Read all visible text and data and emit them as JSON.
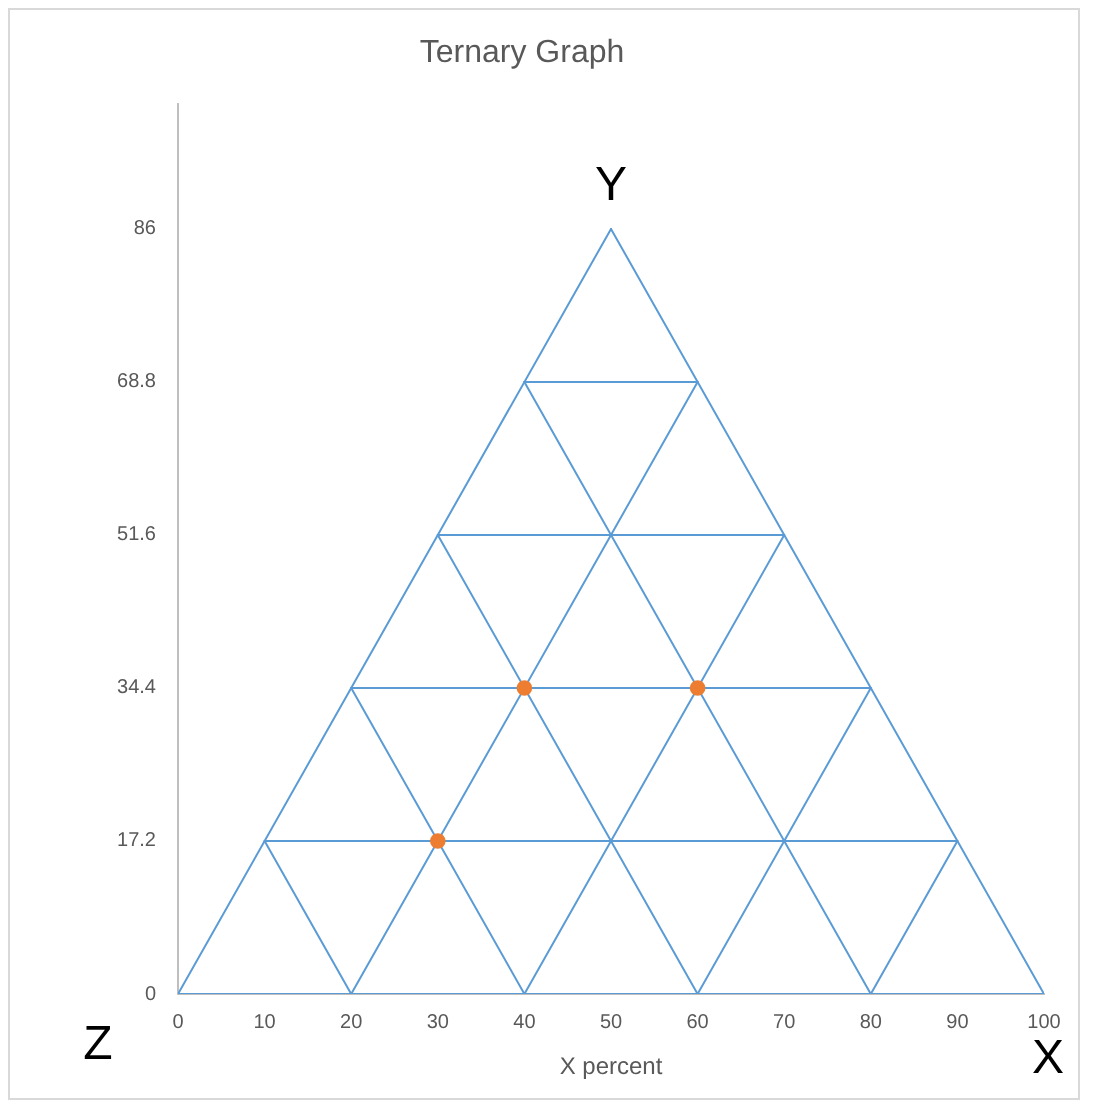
{
  "chart_data": {
    "type": "scatter",
    "title": "Ternary Graph",
    "xlabel": "X percent",
    "xlim": [
      0,
      100
    ],
    "xticks": [
      0,
      10,
      20,
      30,
      40,
      50,
      60,
      70,
      80,
      90,
      100
    ],
    "ylim": [
      0,
      100
    ],
    "yticks": [
      0,
      17.2,
      34.4,
      51.6,
      68.8,
      86
    ],
    "grid": false,
    "legend": false,
    "annotations": [
      {
        "text": "Y",
        "x": 50,
        "y": 86
      },
      {
        "text": "Z",
        "x": 0,
        "y": 0
      },
      {
        "text": "X",
        "x": 100,
        "y": 0
      }
    ],
    "series": [
      {
        "type": "line",
        "color": "#5b9bd5",
        "marker": "none",
        "x": [
          0,
          100
        ],
        "values": [
          0,
          0
        ]
      },
      {
        "type": "line",
        "color": "#5b9bd5",
        "marker": "none",
        "x": [
          10,
          90
        ],
        "values": [
          17.2,
          17.2
        ]
      },
      {
        "type": "line",
        "color": "#5b9bd5",
        "marker": "none",
        "x": [
          20,
          80
        ],
        "values": [
          34.4,
          34.4
        ]
      },
      {
        "type": "line",
        "color": "#5b9bd5",
        "marker": "none",
        "x": [
          30,
          70
        ],
        "values": [
          51.6,
          51.6
        ]
      },
      {
        "type": "line",
        "color": "#5b9bd5",
        "marker": "none",
        "x": [
          40,
          60
        ],
        "values": [
          68.8,
          68.8
        ]
      },
      {
        "type": "line",
        "color": "#5b9bd5",
        "marker": "none",
        "x": [
          0,
          50
        ],
        "values": [
          0,
          86
        ]
      },
      {
        "type": "line",
        "color": "#5b9bd5",
        "marker": "none",
        "x": [
          20,
          60
        ],
        "values": [
          0,
          68.8
        ]
      },
      {
        "type": "line",
        "color": "#5b9bd5",
        "marker": "none",
        "x": [
          40,
          70
        ],
        "values": [
          0,
          51.6
        ]
      },
      {
        "type": "line",
        "color": "#5b9bd5",
        "marker": "none",
        "x": [
          60,
          80
        ],
        "values": [
          0,
          34.4
        ]
      },
      {
        "type": "line",
        "color": "#5b9bd5",
        "marker": "none",
        "x": [
          80,
          90
        ],
        "values": [
          0,
          17.2
        ]
      },
      {
        "type": "line",
        "color": "#5b9bd5",
        "marker": "none",
        "x": [
          50,
          100
        ],
        "values": [
          86,
          0
        ]
      },
      {
        "type": "line",
        "color": "#5b9bd5",
        "marker": "none",
        "x": [
          40,
          80
        ],
        "values": [
          68.8,
          0
        ]
      },
      {
        "type": "line",
        "color": "#5b9bd5",
        "marker": "none",
        "x": [
          30,
          60
        ],
        "values": [
          51.6,
          0
        ]
      },
      {
        "type": "line",
        "color": "#5b9bd5",
        "marker": "none",
        "x": [
          20,
          40
        ],
        "values": [
          34.4,
          0
        ]
      },
      {
        "type": "line",
        "color": "#5b9bd5",
        "marker": "none",
        "x": [
          10,
          20
        ],
        "values": [
          17.2,
          0
        ]
      },
      {
        "type": "scatter",
        "color": "#ed7d31",
        "marker": "circle",
        "x": [
          30,
          40,
          60
        ],
        "values": [
          17.2,
          34.4,
          34.4
        ]
      }
    ]
  }
}
